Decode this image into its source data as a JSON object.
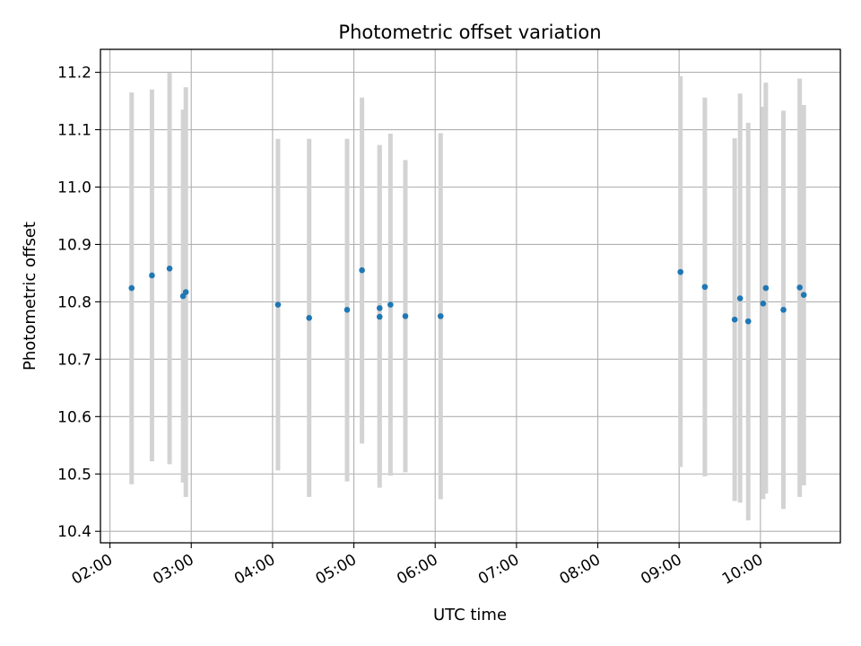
{
  "chart_data": {
    "type": "scatter",
    "title": "Photometric offset variation",
    "xlabel": "UTC time",
    "ylabel": "Photometric offset",
    "xlim": [
      "01:53",
      "10:59"
    ],
    "ylim": [
      10.38,
      11.24
    ],
    "x_ticks": [
      "02:00",
      "03:00",
      "04:00",
      "05:00",
      "06:00",
      "07:00",
      "08:00",
      "09:00",
      "10:00"
    ],
    "y_ticks": [
      "10.4",
      "10.5",
      "10.6",
      "10.7",
      "10.8",
      "10.9",
      "11.0",
      "11.1",
      "11.2"
    ],
    "grid": true,
    "legend": "none",
    "colors": {
      "point": "#1f77b4",
      "errorbar": "#d3d3d3",
      "grid": "#b0b0b0"
    },
    "points": [
      {
        "time": "02:16",
        "y": 10.824,
        "low": 10.482,
        "high": 11.165
      },
      {
        "time": "02:31",
        "y": 10.846,
        "low": 10.522,
        "high": 11.17
      },
      {
        "time": "02:44",
        "y": 10.858,
        "low": 10.517,
        "high": 11.199
      },
      {
        "time": "02:54",
        "y": 10.81,
        "low": 10.485,
        "high": 11.135
      },
      {
        "time": "02:56",
        "y": 10.817,
        "low": 10.46,
        "high": 11.174
      },
      {
        "time": "04:04",
        "y": 10.795,
        "low": 10.506,
        "high": 11.084
      },
      {
        "time": "04:27",
        "y": 10.772,
        "low": 10.46,
        "high": 11.084
      },
      {
        "time": "04:55",
        "y": 10.786,
        "low": 10.487,
        "high": 11.084
      },
      {
        "time": "05:06",
        "y": 10.855,
        "low": 10.553,
        "high": 11.156
      },
      {
        "time": "05:19",
        "y": 10.789,
        "low": 10.505,
        "high": 11.073
      },
      {
        "time": "05:19",
        "y": 10.774,
        "low": 10.476,
        "high": 11.073
      },
      {
        "time": "05:27",
        "y": 10.795,
        "low": 10.497,
        "high": 11.093
      },
      {
        "time": "05:38",
        "y": 10.775,
        "low": 10.503,
        "high": 11.047
      },
      {
        "time": "06:04",
        "y": 10.775,
        "low": 10.456,
        "high": 11.094
      },
      {
        "time": "09:01",
        "y": 10.852,
        "low": 10.512,
        "high": 11.193
      },
      {
        "time": "09:19",
        "y": 10.826,
        "low": 10.496,
        "high": 11.156
      },
      {
        "time": "09:41",
        "y": 10.769,
        "low": 10.453,
        "high": 11.085
      },
      {
        "time": "09:45",
        "y": 10.806,
        "low": 10.45,
        "high": 11.163
      },
      {
        "time": "09:51",
        "y": 10.766,
        "low": 10.419,
        "high": 11.112
      },
      {
        "time": "10:02",
        "y": 10.797,
        "low": 10.456,
        "high": 11.14
      },
      {
        "time": "10:04",
        "y": 10.824,
        "low": 10.466,
        "high": 11.182
      },
      {
        "time": "10:17",
        "y": 10.786,
        "low": 10.439,
        "high": 11.133
      },
      {
        "time": "10:29",
        "y": 10.825,
        "low": 10.46,
        "high": 11.189
      },
      {
        "time": "10:32",
        "y": 10.812,
        "low": 10.48,
        "high": 11.143
      }
    ]
  }
}
